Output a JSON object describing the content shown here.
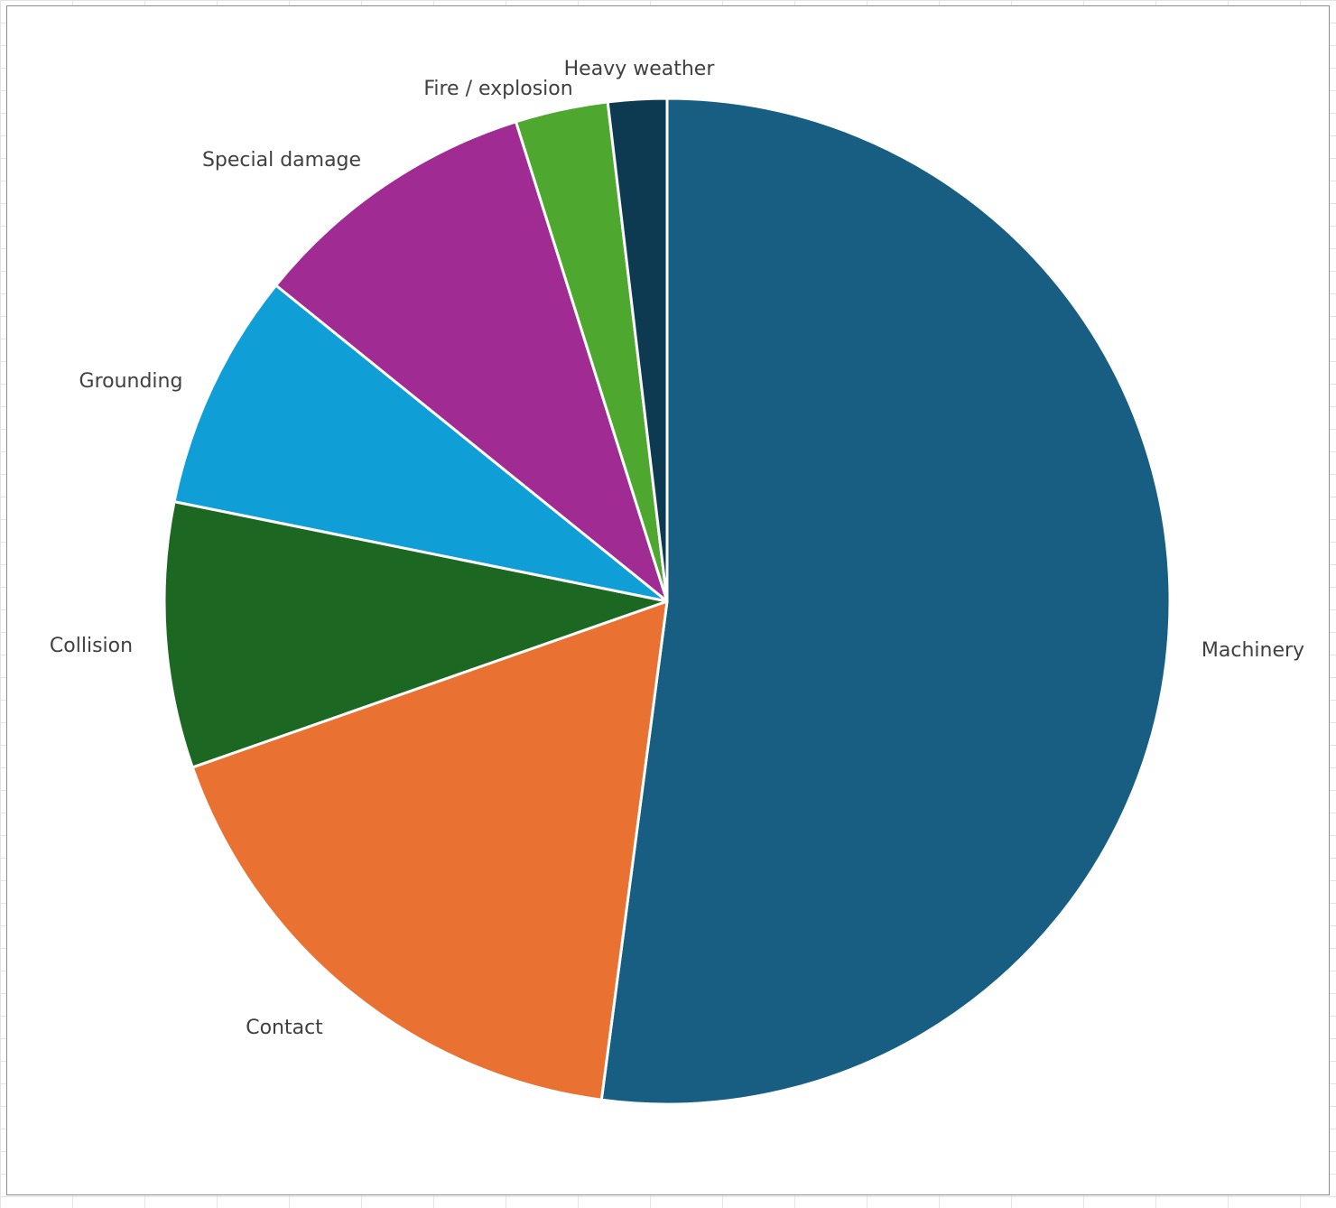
{
  "chart_data": {
    "type": "pie",
    "title": "",
    "slices": [
      {
        "label": "Machinery",
        "value": 52.5,
        "color": "#175E82"
      },
      {
        "label": "Contact",
        "value": 17.7,
        "color": "#E97132"
      },
      {
        "label": "Collision",
        "value": 8.6,
        "color": "#1C6823"
      },
      {
        "label": "Grounding",
        "value": 7.7,
        "color": "#0F9ED5"
      },
      {
        "label": "Special damage",
        "value": 9.4,
        "color": "#A02B93"
      },
      {
        "label": "Fire / explosion",
        "value": 3.0,
        "color": "#4EA72E"
      },
      {
        "label": "Heavy weather",
        "value": 1.9,
        "color": "#0E3A51"
      }
    ],
    "legend": "none",
    "data_labels": "category name outside"
  }
}
